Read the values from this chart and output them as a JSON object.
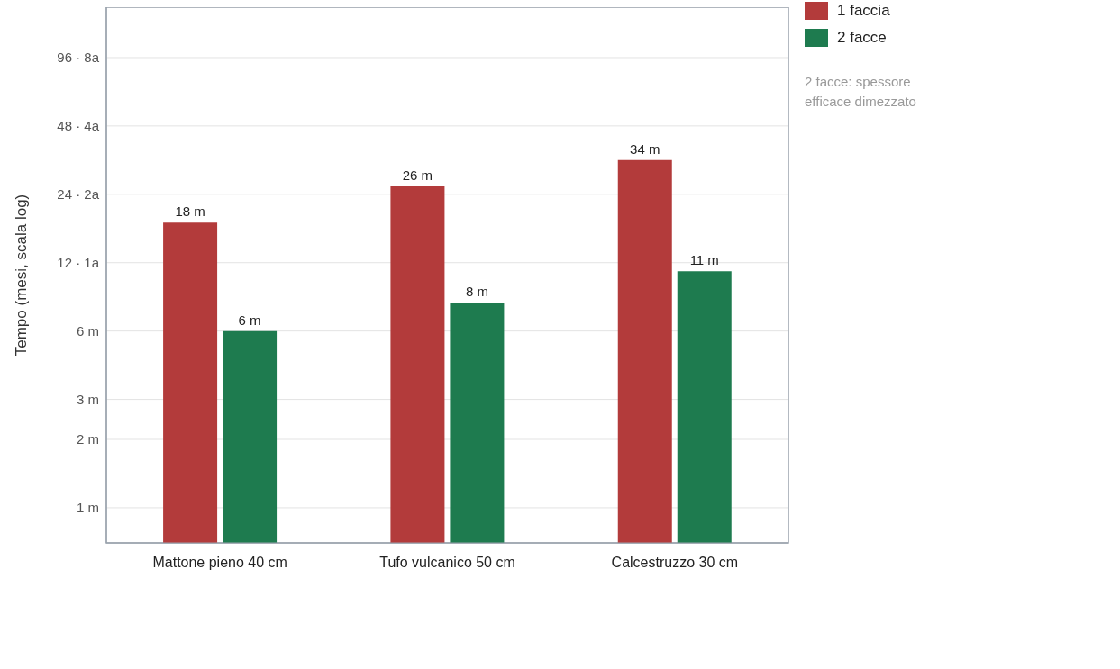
{
  "chart_data": {
    "type": "bar",
    "ylabel": "Tempo (mesi, scala log)",
    "categories": [
      "Mattone pieno 40 cm",
      "Tufo vulcanico 50 cm",
      "Calcestruzzo 30 cm"
    ],
    "series": [
      {
        "name": "1 faccia",
        "color": "#b33b3b",
        "values": [
          18,
          26,
          34
        ],
        "value_labels": [
          "18 m",
          "26 m",
          "34 m"
        ]
      },
      {
        "name": "2 facce",
        "color": "#1e7b4f",
        "values": [
          6,
          8,
          11
        ],
        "value_labels": [
          "6 m",
          "8 m",
          "11 m"
        ]
      }
    ],
    "log": "y",
    "ylim": [
      0.7,
      160
    ],
    "yticks": [
      {
        "value": 1,
        "label": "1 m"
      },
      {
        "value": 2,
        "label": "2 m"
      },
      {
        "value": 3,
        "label": "3 m"
      },
      {
        "value": 6,
        "label": "6 m"
      },
      {
        "value": 12,
        "label": "12 · 1a"
      },
      {
        "value": 24,
        "label": "24 · 2a"
      },
      {
        "value": 48,
        "label": "48 · 4a"
      },
      {
        "value": 96,
        "label": "96 · 8a"
      }
    ],
    "grid": "y",
    "legend": "top right",
    "annotations": [
      "2 facce: spessore efficace dimezzato"
    ]
  }
}
